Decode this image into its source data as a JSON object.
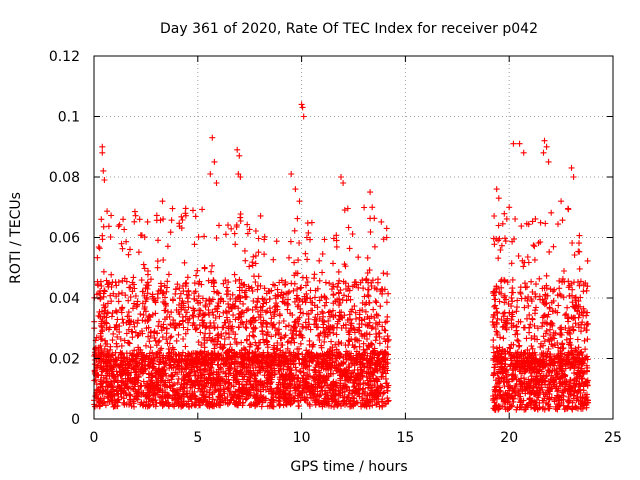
{
  "chart_data": {
    "type": "scatter",
    "title": "Day 361 of 2020, Rate Of TEC Index for receiver p042",
    "xlabel": "GPS time / hours",
    "ylabel": "ROTI / TECUs",
    "xlim": [
      0,
      25
    ],
    "ylim": [
      0,
      0.12
    ],
    "xticks": [
      0,
      5,
      10,
      15,
      20,
      25
    ],
    "xtick_labels": [
      "0",
      "5",
      "10",
      "15",
      "20",
      "25"
    ],
    "yticks": [
      0,
      0.02,
      0.04,
      0.06,
      0.08,
      0.1,
      0.12
    ],
    "ytick_labels": [
      "0",
      "0.02",
      "0.04",
      "0.06",
      "0.08",
      "0.1",
      "0.12"
    ],
    "grid": true,
    "marker": "plus",
    "color": "#ff0000",
    "series": [
      {
        "values_description": "dense ROTI scatter, two coverage windows",
        "segments": [
          {
            "x_start": 0.0,
            "x_end": 14.2,
            "y_base_min": 0.004,
            "y_base_max": 0.022,
            "y_max": 0.104
          },
          {
            "x_start": 19.2,
            "x_end": 23.8,
            "y_base_min": 0.003,
            "y_base_max": 0.022,
            "y_max": 0.092
          }
        ],
        "peaks": [
          [
            0.4,
            0.09
          ],
          [
            0.4,
            0.088
          ],
          [
            0.45,
            0.082
          ],
          [
            0.5,
            0.079
          ],
          [
            0.35,
            0.066
          ],
          [
            5.7,
            0.093
          ],
          [
            5.8,
            0.085
          ],
          [
            5.6,
            0.081
          ],
          [
            5.9,
            0.078
          ],
          [
            6.9,
            0.089
          ],
          [
            7.0,
            0.087
          ],
          [
            6.95,
            0.081
          ],
          [
            7.05,
            0.08
          ],
          [
            10.0,
            0.104
          ],
          [
            10.05,
            0.103
          ],
          [
            10.1,
            0.1
          ],
          [
            9.5,
            0.081
          ],
          [
            9.7,
            0.076
          ],
          [
            9.9,
            0.072
          ],
          [
            11.9,
            0.08
          ],
          [
            12.0,
            0.078
          ],
          [
            13.3,
            0.075
          ],
          [
            13.4,
            0.07
          ],
          [
            14.1,
            0.063
          ],
          [
            14.1,
            0.06
          ],
          [
            3.3,
            0.072
          ],
          [
            4.4,
            0.068
          ],
          [
            2.2,
            0.066
          ],
          [
            1.4,
            0.066
          ],
          [
            20.2,
            0.091
          ],
          [
            20.5,
            0.091
          ],
          [
            20.7,
            0.088
          ],
          [
            21.7,
            0.092
          ],
          [
            21.8,
            0.09
          ],
          [
            21.9,
            0.085
          ],
          [
            21.65,
            0.088
          ],
          [
            23.0,
            0.083
          ],
          [
            23.1,
            0.08
          ],
          [
            19.4,
            0.076
          ],
          [
            19.5,
            0.073
          ],
          [
            20.0,
            0.07
          ],
          [
            22.5,
            0.072
          ]
        ]
      }
    ]
  }
}
